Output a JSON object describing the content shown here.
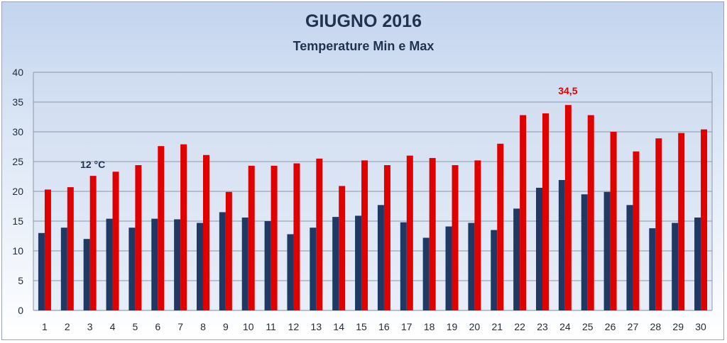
{
  "chart_data": {
    "type": "bar",
    "title": "GIUGNO 2016",
    "subtitle": "Temperature Min e Max",
    "categories": [
      "1",
      "2",
      "3",
      "4",
      "5",
      "6",
      "7",
      "8",
      "9",
      "10",
      "11",
      "12",
      "13",
      "14",
      "15",
      "16",
      "17",
      "18",
      "19",
      "20",
      "21",
      "22",
      "23",
      "24",
      "25",
      "26",
      "27",
      "28",
      "29",
      "30"
    ],
    "series": [
      {
        "color": "#1f3864",
        "values": [
          13.0,
          13.9,
          12.0,
          15.4,
          13.9,
          15.4,
          15.3,
          14.7,
          16.5,
          15.6,
          15.0,
          12.8,
          13.9,
          15.7,
          15.9,
          17.7,
          14.8,
          12.2,
          14.1,
          14.7,
          13.5,
          17.1,
          20.6,
          21.9,
          19.5,
          19.9,
          17.7,
          13.8,
          14.7,
          15.6
        ]
      },
      {
        "color": "#e00000",
        "values": [
          20.3,
          20.7,
          22.6,
          23.3,
          24.4,
          27.6,
          27.9,
          26.1,
          19.9,
          24.3,
          24.3,
          24.7,
          25.5,
          20.9,
          25.2,
          24.4,
          26.0,
          25.6,
          24.4,
          25.2,
          28.0,
          32.8,
          33.1,
          34.5,
          32.8,
          30.0,
          26.7,
          28.9,
          29.8,
          30.4
        ]
      }
    ],
    "ylim": [
      0,
      40
    ],
    "yticks": [
      0,
      5,
      10,
      15,
      20,
      25,
      30,
      35,
      40
    ],
    "grid": true,
    "legend": "none",
    "annotations": [
      {
        "text": "12 °C",
        "category": "3",
        "series": 0,
        "color": "#1f3350"
      },
      {
        "text": "34,5",
        "category": "24",
        "series": 1,
        "color": "#e00000"
      }
    ]
  }
}
